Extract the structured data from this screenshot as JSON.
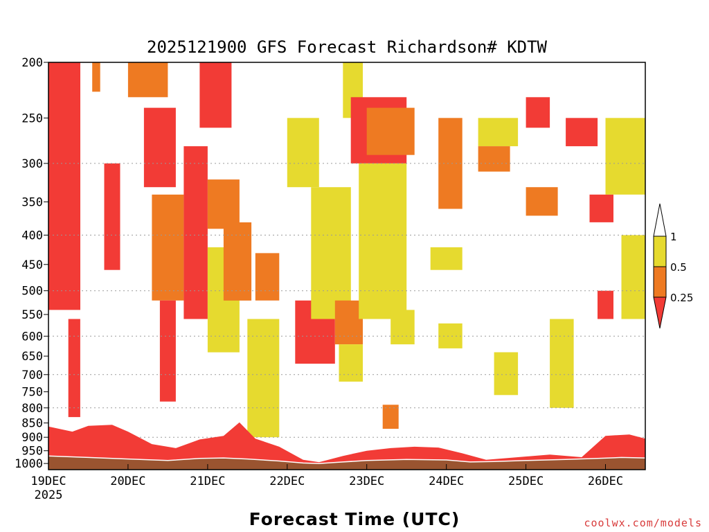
{
  "chart_data": {
    "type": "heatmap",
    "title": "2025121900 GFS Forecast Richardson# KDTW",
    "xlabel": "Forecast Time (UTC)",
    "ylabel": "",
    "credit": "coolwx.com/models",
    "x_ticks": [
      {
        "day": 19,
        "label": "19DEC",
        "sublabel": "2025"
      },
      {
        "day": 20,
        "label": "20DEC"
      },
      {
        "day": 21,
        "label": "21DEC"
      },
      {
        "day": 22,
        "label": "22DEC"
      },
      {
        "day": 23,
        "label": "23DEC"
      },
      {
        "day": 24,
        "label": "24DEC"
      },
      {
        "day": 25,
        "label": "25DEC"
      },
      {
        "day": 26,
        "label": "26DEC"
      }
    ],
    "xlim": [
      19,
      26.5
    ],
    "y_scale": "log",
    "y_unit": "hPa",
    "ylim": [
      1025,
      200
    ],
    "y_ticks": [
      200,
      250,
      300,
      350,
      400,
      450,
      500,
      550,
      600,
      650,
      700,
      750,
      800,
      850,
      900,
      950,
      1000
    ],
    "y_gridlines": [
      300,
      400,
      500,
      600,
      700,
      800,
      900,
      1000
    ],
    "colorbar": {
      "levels": [
        "0.25",
        "0.5",
        "1"
      ],
      "bins": [
        {
          "range": "< 0.25",
          "color": "#f23b36"
        },
        {
          "range": "0.25 - 0.5",
          "color": "#ee7a22"
        },
        {
          "range": "0.5 - 1",
          "color": "#e6da2f"
        },
        {
          "range": "> 1",
          "color": "#ffffff"
        }
      ]
    },
    "ground_color": "#9a5430",
    "surface_pressure": [
      [
        19.0,
        970
      ],
      [
        19.5,
        976
      ],
      [
        20.0,
        982
      ],
      [
        20.5,
        988
      ],
      [
        20.9,
        980
      ],
      [
        21.2,
        978
      ],
      [
        21.5,
        982
      ],
      [
        21.9,
        990
      ],
      [
        22.2,
        998
      ],
      [
        22.4,
        1000
      ],
      [
        22.7,
        994
      ],
      [
        23.0,
        988
      ],
      [
        23.5,
        984
      ],
      [
        24.0,
        986
      ],
      [
        24.3,
        994
      ],
      [
        24.6,
        992
      ],
      [
        25.0,
        988
      ],
      [
        25.5,
        984
      ],
      [
        25.9,
        980
      ],
      [
        26.2,
        976
      ],
      [
        26.5,
        978
      ]
    ],
    "boundary_layer_top": [
      [
        19.0,
        862
      ],
      [
        19.3,
        880
      ],
      [
        19.5,
        860
      ],
      [
        19.8,
        856
      ],
      [
        20.0,
        880
      ],
      [
        20.3,
        925
      ],
      [
        20.6,
        940
      ],
      [
        20.9,
        908
      ],
      [
        21.2,
        895
      ],
      [
        21.4,
        848
      ],
      [
        21.6,
        905
      ],
      [
        21.9,
        935
      ],
      [
        22.2,
        985
      ],
      [
        22.4,
        995
      ],
      [
        22.7,
        970
      ],
      [
        23.0,
        950
      ],
      [
        23.3,
        940
      ],
      [
        23.6,
        935
      ],
      [
        23.9,
        938
      ],
      [
        24.2,
        960
      ],
      [
        24.5,
        985
      ],
      [
        24.9,
        975
      ],
      [
        25.3,
        965
      ],
      [
        25.7,
        975
      ],
      [
        26.0,
        895
      ],
      [
        26.3,
        890
      ],
      [
        26.5,
        905
      ]
    ],
    "patches": [
      {
        "t0": 19.0,
        "t1": 19.4,
        "p0": 200,
        "p1": 540,
        "bin": 0
      },
      {
        "t0": 19.25,
        "t1": 19.4,
        "p0": 560,
        "p1": 830,
        "bin": 0
      },
      {
        "t0": 19.55,
        "t1": 19.65,
        "p0": 200,
        "p1": 225,
        "bin": 1
      },
      {
        "t0": 19.7,
        "t1": 19.9,
        "p0": 300,
        "p1": 460,
        "bin": 0
      },
      {
        "t0": 20.0,
        "t1": 20.5,
        "p0": 200,
        "p1": 230,
        "bin": 1
      },
      {
        "t0": 20.2,
        "t1": 20.6,
        "p0": 240,
        "p1": 330,
        "bin": 0
      },
      {
        "t0": 20.3,
        "t1": 20.7,
        "p0": 340,
        "p1": 520,
        "bin": 1
      },
      {
        "t0": 20.4,
        "t1": 20.6,
        "p0": 520,
        "p1": 780,
        "bin": 0
      },
      {
        "t0": 20.7,
        "t1": 21.0,
        "p0": 280,
        "p1": 560,
        "bin": 0
      },
      {
        "t0": 20.9,
        "t1": 21.3,
        "p0": 200,
        "p1": 260,
        "bin": 0
      },
      {
        "t0": 21.0,
        "t1": 21.4,
        "p0": 320,
        "p1": 390,
        "bin": 1
      },
      {
        "t0": 21.0,
        "t1": 21.4,
        "p0": 420,
        "p1": 640,
        "bin": 2
      },
      {
        "t0": 21.2,
        "t1": 21.55,
        "p0": 380,
        "p1": 520,
        "bin": 1
      },
      {
        "t0": 21.6,
        "t1": 21.9,
        "p0": 430,
        "p1": 520,
        "bin": 1
      },
      {
        "t0": 21.5,
        "t1": 21.9,
        "p0": 560,
        "p1": 900,
        "bin": 2
      },
      {
        "t0": 22.0,
        "t1": 22.4,
        "p0": 250,
        "p1": 330,
        "bin": 2
      },
      {
        "t0": 22.1,
        "t1": 22.6,
        "p0": 520,
        "p1": 670,
        "bin": 0
      },
      {
        "t0": 22.3,
        "t1": 22.8,
        "p0": 330,
        "p1": 560,
        "bin": 2
      },
      {
        "t0": 22.6,
        "t1": 22.95,
        "p0": 520,
        "p1": 620,
        "bin": 1
      },
      {
        "t0": 22.65,
        "t1": 22.95,
        "p0": 620,
        "p1": 720,
        "bin": 2
      },
      {
        "t0": 22.7,
        "t1": 22.95,
        "p0": 200,
        "p1": 250,
        "bin": 2
      },
      {
        "t0": 22.8,
        "t1": 23.5,
        "p0": 230,
        "p1": 300,
        "bin": 0
      },
      {
        "t0": 22.9,
        "t1": 23.5,
        "p0": 300,
        "p1": 560,
        "bin": 2
      },
      {
        "t0": 23.0,
        "t1": 23.6,
        "p0": 240,
        "p1": 290,
        "bin": 1
      },
      {
        "t0": 23.2,
        "t1": 23.4,
        "p0": 790,
        "p1": 870,
        "bin": 1
      },
      {
        "t0": 23.3,
        "t1": 23.6,
        "p0": 540,
        "p1": 620,
        "bin": 2
      },
      {
        "t0": 23.9,
        "t1": 24.2,
        "p0": 250,
        "p1": 360,
        "bin": 1
      },
      {
        "t0": 23.8,
        "t1": 24.2,
        "p0": 420,
        "p1": 460,
        "bin": 2
      },
      {
        "t0": 23.9,
        "t1": 24.2,
        "p0": 570,
        "p1": 630,
        "bin": 2
      },
      {
        "t0": 24.4,
        "t1": 24.9,
        "p0": 250,
        "p1": 280,
        "bin": 2
      },
      {
        "t0": 24.4,
        "t1": 24.8,
        "p0": 280,
        "p1": 310,
        "bin": 1
      },
      {
        "t0": 24.6,
        "t1": 24.9,
        "p0": 640,
        "p1": 760,
        "bin": 2
      },
      {
        "t0": 25.0,
        "t1": 25.3,
        "p0": 230,
        "p1": 260,
        "bin": 0
      },
      {
        "t0": 25.0,
        "t1": 25.4,
        "p0": 330,
        "p1": 370,
        "bin": 1
      },
      {
        "t0": 25.3,
        "t1": 25.6,
        "p0": 560,
        "p1": 800,
        "bin": 2
      },
      {
        "t0": 25.5,
        "t1": 25.9,
        "p0": 250,
        "p1": 280,
        "bin": 0
      },
      {
        "t0": 25.8,
        "t1": 26.1,
        "p0": 340,
        "p1": 380,
        "bin": 0
      },
      {
        "t0": 25.9,
        "t1": 26.1,
        "p0": 500,
        "p1": 560,
        "bin": 0
      },
      {
        "t0": 26.0,
        "t1": 26.5,
        "p0": 250,
        "p1": 340,
        "bin": 2
      },
      {
        "t0": 26.2,
        "t1": 26.5,
        "p0": 400,
        "p1": 560,
        "bin": 2
      }
    ]
  }
}
